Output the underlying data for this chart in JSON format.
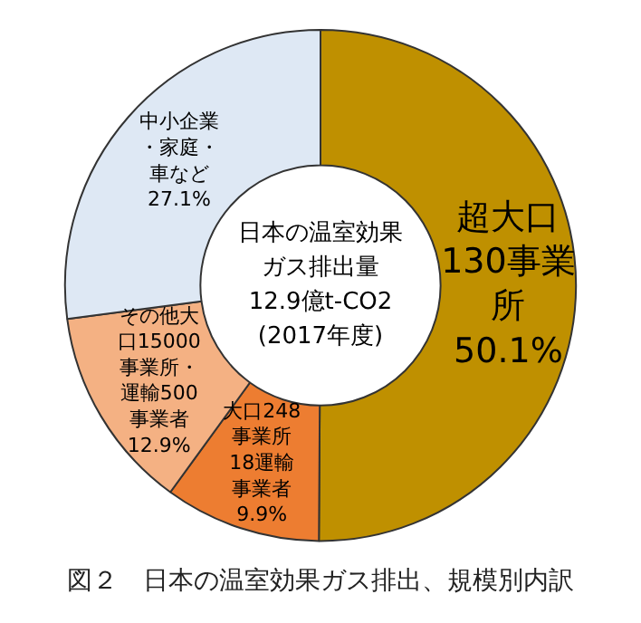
{
  "chart_data": {
    "type": "donut",
    "title": "図２　日本の温室効果ガス排出、規模別内訳",
    "categories": [
      "超大口130事業所",
      "大口248事業所18運輸事業者",
      "その他大口15000事業所・運輸500事業者",
      "中小企業・家庭・車など"
    ],
    "values": [
      50.1,
      9.9,
      12.9,
      27.1
    ],
    "value_labels": [
      "50.1%",
      "9.9%",
      "12.9%",
      "27.1%"
    ],
    "colors": [
      "#bf9000",
      "#ed7d31",
      "#f4b183",
      "#dee8f4"
    ],
    "annotations": [
      "日本の温室効果ガス排出量",
      "12.9億t-CO2",
      "(2017年度)"
    ],
    "legend": false
  }
}
